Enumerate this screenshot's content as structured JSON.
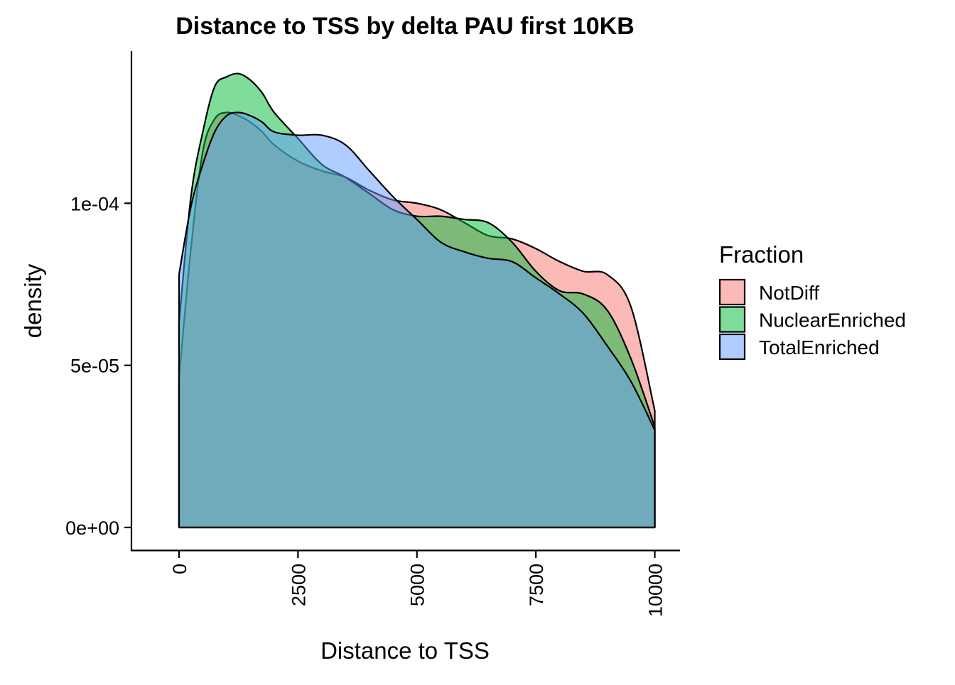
{
  "chart_data": {
    "type": "area",
    "subtype": "density",
    "title": "Distance to TSS by delta PAU first 10KB",
    "xlabel": "Distance to TSS",
    "ylabel": "density",
    "xlim": [
      -1000,
      10500
    ],
    "ylim": [
      -7e-06,
      0.00015
    ],
    "x_ticks": [
      {
        "value": 0,
        "label": "0"
      },
      {
        "value": 2500,
        "label": "2500"
      },
      {
        "value": 5000,
        "label": "5000"
      },
      {
        "value": 7500,
        "label": "7500"
      },
      {
        "value": 10000,
        "label": "10000"
      }
    ],
    "y_ticks": [
      {
        "value": 0,
        "label": "0e+00"
      },
      {
        "value": 5e-05,
        "label": "5e-05"
      },
      {
        "value": 0.0001,
        "label": "1e-04"
      }
    ],
    "legend": {
      "title": "Fraction",
      "position": "right"
    },
    "grid": false,
    "x": [
      0,
      250,
      500,
      750,
      1000,
      1250,
      1500,
      1750,
      2000,
      2500,
      3000,
      3500,
      4000,
      4500,
      5000,
      5500,
      6000,
      6500,
      7000,
      7500,
      8000,
      8500,
      9000,
      9500,
      10000
    ],
    "series": [
      {
        "name": "NotDiff",
        "color": "#F8766D",
        "values": [
          4.6e-05,
          8.6e-05,
          0.000116,
          0.000126,
          0.000128,
          0.000127,
          0.000125,
          0.000122,
          0.000118,
          0.000113,
          0.00011,
          0.000108,
          0.000104,
          0.000101,
          0.0001,
          9.8e-05,
          9.4e-05,
          9e-05,
          8.9e-05,
          8.6e-05,
          8.2e-05,
          7.9e-05,
          7.8e-05,
          6.8e-05,
          3.6e-05
        ]
      },
      {
        "name": "NuclearEnriched",
        "color": "#00BA38",
        "values": [
          6.3e-05,
          0.000102,
          0.000122,
          0.000136,
          0.000139,
          0.00014,
          0.000138,
          0.000134,
          0.000128,
          0.00012,
          0.000112,
          0.000108,
          0.000103,
          9.8e-05,
          9.6e-05,
          9.6e-05,
          9.5e-05,
          9.4e-05,
          8.8e-05,
          7.9e-05,
          7.3e-05,
          7.2e-05,
          6.7e-05,
          5.2e-05,
          3.1e-05
        ]
      },
      {
        "name": "TotalEnriched",
        "color": "#619CFF",
        "values": [
          7.8e-05,
          9.9e-05,
          0.000112,
          0.000122,
          0.000127,
          0.000128,
          0.000127,
          0.000125,
          0.000122,
          0.000121,
          0.000121,
          0.000118,
          0.00011,
          0.000102,
          9.5e-05,
          8.8e-05,
          8.5e-05,
          8.3e-05,
          8.2e-05,
          7.7e-05,
          7.2e-05,
          6.6e-05,
          5.6e-05,
          4.5e-05,
          3e-05
        ]
      }
    ]
  }
}
